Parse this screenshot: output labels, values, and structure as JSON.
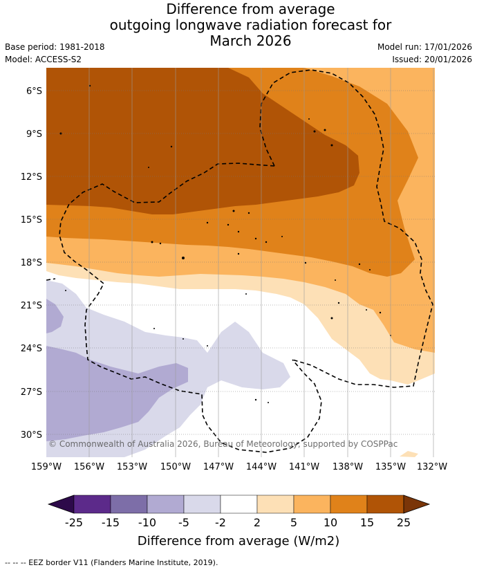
{
  "title": {
    "line1": "Difference from average",
    "line2": "outgoing longwave radiation forecast for",
    "line3": "March 2026"
  },
  "meta": {
    "base_period": "Base period: 1981-2018",
    "model": "Model: ACCESS-S2",
    "model_run": "Model run: 17/01/2026",
    "issued": "Issued: 20/01/2026"
  },
  "map": {
    "lat_labels": [
      "6°S",
      "9°S",
      "12°S",
      "15°S",
      "18°S",
      "21°S",
      "24°S",
      "27°S",
      "30°S"
    ],
    "lon_labels": [
      "159°W",
      "156°W",
      "153°W",
      "150°W",
      "147°W",
      "144°W",
      "141°W",
      "138°W",
      "135°W",
      "132°W"
    ],
    "copyright": "© Commonwealth of Australia 2026, Bureau of Meteorology, supported by COSPPac"
  },
  "colorbar": {
    "ticks": [
      "-25",
      "-15",
      "-10",
      "-5",
      "-2",
      "2",
      "5",
      "10",
      "15",
      "25"
    ],
    "title": "Difference from average (W/m2)",
    "colors": [
      "#2d0a4a",
      "#5c2a8a",
      "#7d6ea8",
      "#b1aad2",
      "#d9d9ea",
      "#ffffff",
      "#fde0b6",
      "#fbb45e",
      "#e0821a",
      "#b05406",
      "#7a3508"
    ]
  },
  "footer": {
    "legend": "-- -- -- EEZ border V11 (Flanders Marine Institute, 2019)."
  }
}
